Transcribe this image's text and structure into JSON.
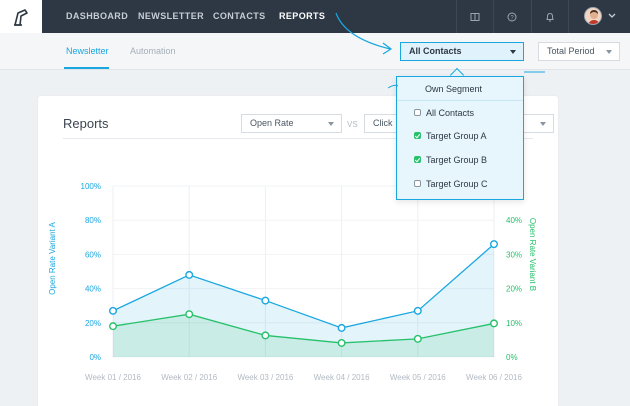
{
  "nav": {
    "items": [
      "DASHBOARD",
      "NEWSLETTER",
      "CONTACTS",
      "REPORTS"
    ],
    "active": "REPORTS",
    "icons": [
      "book-icon",
      "help-icon",
      "bell-icon"
    ],
    "avatar_icon": "avatar"
  },
  "subnav": {
    "tabs": [
      "Newsletter",
      "Automation"
    ],
    "active": "Newsletter",
    "segment_select": "All Contacts",
    "period_select": "Total Period"
  },
  "reports": {
    "title": "Reports",
    "metric_a": "Open Rate",
    "vs_label": "VS",
    "metric_b": "Click"
  },
  "dropdown": {
    "header": "Own Segment",
    "options": [
      {
        "label": "All Contacts",
        "checked": false
      },
      {
        "label": "Target Group A",
        "checked": true
      },
      {
        "label": "Target Group B",
        "checked": true
      },
      {
        "label": "Target Group C",
        "checked": false
      }
    ]
  },
  "colors": {
    "nav_bg": "#2d3844",
    "accent_blue": "#1aa7e0",
    "series_green": "#27c16b"
  },
  "chart_data": {
    "type": "line",
    "categories": [
      "Week 01 / 2016",
      "Week 02 / 2016",
      "Week 03 / 2016",
      "Week 04 / 2016",
      "Week 05 / 2016",
      "Week 06 / 2016"
    ],
    "left_axis_label": "Open Rate Variant A",
    "right_axis_label": "Open Rate Variant B",
    "left_ticks": [
      "100%",
      "80%",
      "60%",
      "40%",
      "20%",
      "0%"
    ],
    "right_ticks": [
      "40%",
      "30%",
      "20%",
      "10%",
      "0%"
    ],
    "ylim_left": [
      0,
      100
    ],
    "ylim_right": [
      0,
      40
    ],
    "grid": true,
    "series": [
      {
        "name": "Open Rate Variant A",
        "axis": "left",
        "values": [
          27,
          48,
          33,
          17,
          27,
          66
        ]
      },
      {
        "name": "Open Rate Variant B",
        "axis": "right",
        "values": [
          9,
          12.5,
          6.3,
          4.1,
          5.3,
          9.8
        ]
      }
    ]
  }
}
